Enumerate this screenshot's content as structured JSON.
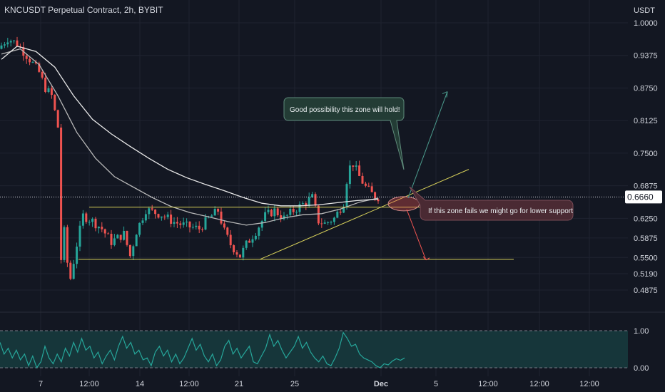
{
  "header": {
    "title": "KNCUSDT Perpetual Contract, 2h, BYBIT",
    "currency": "USDT"
  },
  "colors": {
    "background": "#131722",
    "up": "#26a69a",
    "down": "#ef5350",
    "ma_fast": "#b8b8b8",
    "ma_slow": "#e8e8e8",
    "levels": "#d8d15a",
    "arrow_up": "#4b9b8d",
    "arrow_down": "#ef5350",
    "rsi_line": "#26a69a",
    "rsi_fill": "#16363a"
  },
  "annotations": {
    "bull_note": "Good possibility this zone will hold!",
    "bear_note": "If this zone fails we might go for lower support"
  },
  "chart_data": [
    {
      "type": "candlestick",
      "title": "KNCUSDT Perpetual Contract, 2h, BYBIT",
      "ylabel": "USDT",
      "ylim": [
        0.4875,
        1.0
      ],
      "y_ticks": [
        "1.0000",
        "0.9375",
        "0.8750",
        "0.8125",
        "0.7500",
        "0.6875",
        "0.6250",
        "0.5875",
        "0.5500",
        "0.5190",
        "0.4875"
      ],
      "current_price": "0.6660",
      "x_ticks": [
        "7",
        "12:00",
        "14",
        "12:00",
        "21",
        "25",
        "Dec",
        "5",
        "12:00",
        "12:00",
        "12:00"
      ],
      "price_path": [
        [
          0,
          0.95
        ],
        [
          3,
          0.97
        ],
        [
          6,
          0.96
        ],
        [
          10,
          0.93
        ],
        [
          13,
          0.905
        ],
        [
          15,
          0.875
        ],
        [
          17,
          0.86
        ],
        [
          19,
          0.8
        ],
        [
          19.5,
          0.52
        ],
        [
          21,
          0.6
        ],
        [
          22,
          0.54
        ],
        [
          23,
          0.51
        ],
        [
          25,
          0.575
        ],
        [
          27,
          0.63
        ],
        [
          30,
          0.62
        ],
        [
          33,
          0.605
        ],
        [
          36,
          0.58
        ],
        [
          40,
          0.595
        ],
        [
          42,
          0.553
        ],
        [
          44,
          0.6
        ],
        [
          47,
          0.642
        ],
        [
          52,
          0.632
        ],
        [
          56,
          0.618
        ],
        [
          60,
          0.61
        ],
        [
          64,
          0.605
        ],
        [
          67,
          0.625
        ],
        [
          70,
          0.64
        ],
        [
          72,
          0.6
        ],
        [
          74,
          0.575
        ],
        [
          76,
          0.56
        ],
        [
          77,
          0.553
        ],
        [
          79,
          0.575
        ],
        [
          82,
          0.6
        ],
        [
          85,
          0.63
        ],
        [
          88,
          0.64
        ],
        [
          91,
          0.625
        ],
        [
          94,
          0.64
        ],
        [
          97,
          0.652
        ],
        [
          100,
          0.665
        ],
        [
          102,
          0.62
        ],
        [
          104,
          0.615
        ],
        [
          107,
          0.625
        ],
        [
          110,
          0.655
        ],
        [
          111.5,
          0.72
        ],
        [
          113,
          0.73
        ],
        [
          115,
          0.705
        ],
        [
          117,
          0.685
        ],
        [
          119,
          0.672
        ],
        [
          120,
          0.666
        ]
      ],
      "series": [
        {
          "name": "MA fast",
          "values": [
            [
              0,
              0.94
            ],
            [
              6,
              0.95
            ],
            [
              12,
              0.92
            ],
            [
              18,
              0.86
            ],
            [
              24,
              0.79
            ],
            [
              30,
              0.74
            ],
            [
              36,
              0.705
            ],
            [
              42,
              0.685
            ],
            [
              48,
              0.665
            ],
            [
              54,
              0.648
            ],
            [
              60,
              0.636
            ],
            [
              66,
              0.628
            ],
            [
              72,
              0.619
            ],
            [
              78,
              0.612
            ],
            [
              84,
              0.617
            ],
            [
              90,
              0.626
            ],
            [
              96,
              0.632
            ],
            [
              102,
              0.634
            ],
            [
              108,
              0.643
            ],
            [
              114,
              0.656
            ],
            [
              120,
              0.664
            ]
          ]
        },
        {
          "name": "MA slow",
          "values": [
            [
              0,
              0.93
            ],
            [
              5,
              0.955
            ],
            [
              11,
              0.945
            ],
            [
              17,
              0.915
            ],
            [
              23,
              0.86
            ],
            [
              29,
              0.815
            ],
            [
              35,
              0.787
            ],
            [
              41,
              0.763
            ],
            [
              47,
              0.74
            ],
            [
              53,
              0.719
            ],
            [
              59,
              0.703
            ],
            [
              65,
              0.69
            ],
            [
              71,
              0.678
            ],
            [
              77,
              0.665
            ],
            [
              83,
              0.654
            ],
            [
              89,
              0.649
            ],
            [
              95,
              0.649
            ],
            [
              101,
              0.651
            ],
            [
              107,
              0.655
            ],
            [
              113,
              0.659
            ],
            [
              120,
              0.662
            ]
          ]
        }
      ],
      "horizontal_levels": [
        0.6465,
        0.5465
      ],
      "trendline": [
        [
          76,
          0.5465
        ],
        [
          140,
          0.719
        ]
      ],
      "projections": {
        "up_target": 0.868,
        "down_target": 0.5465
      }
    },
    {
      "type": "line",
      "title": "",
      "ylim": [
        0,
        1
      ],
      "y_ticks": [
        "1.00",
        "0.00"
      ],
      "values": [
        0.7,
        0.4,
        0.55,
        0.3,
        0.5,
        0.25,
        0.4,
        0.1,
        0.35,
        0.05,
        0.2,
        0.6,
        0.3,
        0.15,
        0.4,
        0.2,
        0.55,
        0.35,
        0.7,
        0.45,
        0.8,
        0.5,
        0.6,
        0.3,
        0.45,
        0.15,
        0.35,
        0.5,
        0.25,
        0.6,
        0.85,
        0.55,
        0.7,
        0.4,
        0.5,
        0.25,
        0.3,
        0.1,
        0.45,
        0.6,
        0.35,
        0.5,
        0.2,
        0.4,
        0.15,
        0.3,
        0.55,
        0.8,
        0.5,
        0.65,
        0.35,
        0.2,
        0.4,
        0.1,
        0.25,
        0.6,
        0.75,
        0.4,
        0.55,
        0.3,
        0.45,
        0.6,
        0.2,
        0.15,
        0.35,
        0.55,
        0.9,
        0.6,
        0.75,
        0.5,
        0.3,
        0.45,
        0.6,
        0.85,
        0.55,
        0.7,
        0.45,
        0.3,
        0.2,
        0.35,
        0.15,
        0.1,
        0.3,
        0.55,
        0.95,
        0.8,
        0.6,
        0.65,
        0.4,
        0.3,
        0.25,
        0.2,
        0.1,
        0.05,
        0.15,
        0.12,
        0.22,
        0.28,
        0.24,
        0.3
      ]
    }
  ]
}
